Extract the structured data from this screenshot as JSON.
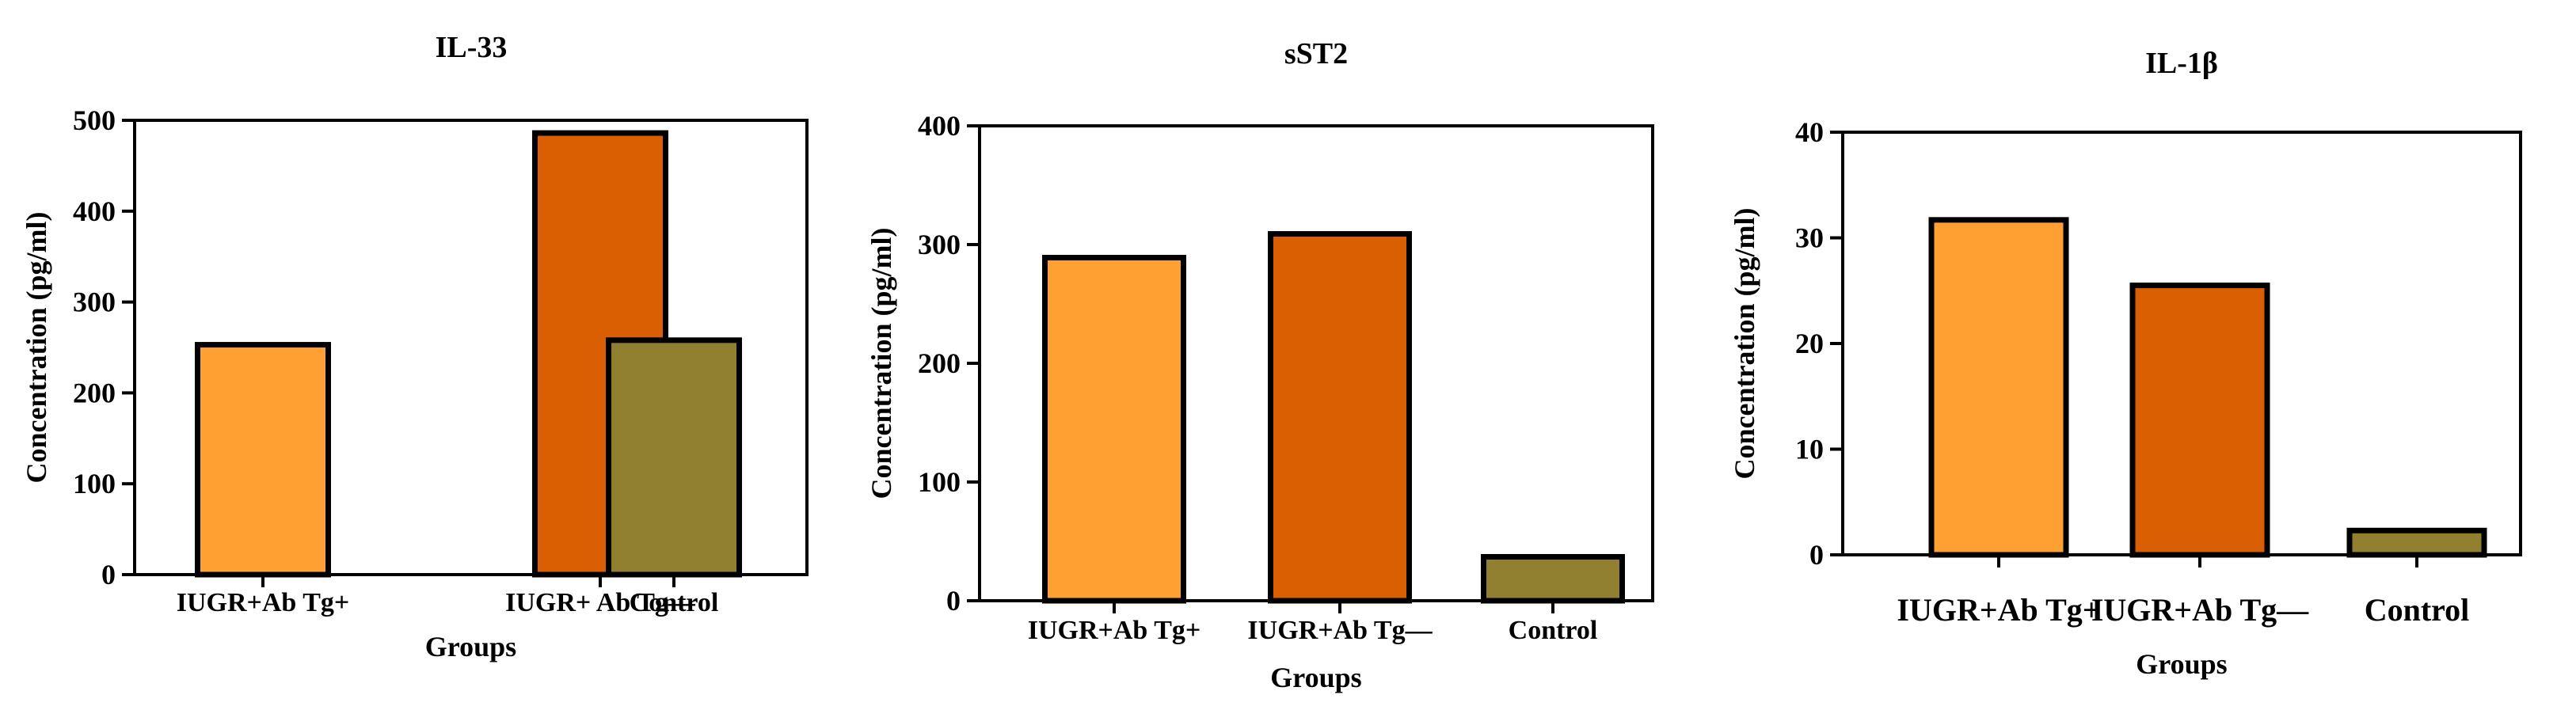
{
  "chart_data": [
    {
      "type": "bar",
      "title": "IL-33",
      "xlabel": "Groups",
      "ylabel": "Concentration (pg/ml)",
      "ylim": [
        0,
        500
      ],
      "yticks": [
        0,
        100,
        200,
        300,
        400,
        500
      ],
      "categories": [
        "IUGR+Ab Tg+",
        "IUGR+ Ab Tg—",
        "Control"
      ],
      "values": [
        253,
        486,
        258
      ],
      "colors": [
        "#FFA033",
        "#D95F02",
        "#917F30"
      ]
    },
    {
      "type": "bar",
      "title": "sST2",
      "xlabel": "Groups",
      "ylabel": "Concentration (pg/ml)",
      "ylim": [
        0,
        400
      ],
      "yticks": [
        0,
        100,
        200,
        300,
        400
      ],
      "categories": [
        "IUGR+Ab Tg+",
        "IUGR+Ab Tg—",
        "Control"
      ],
      "values": [
        289,
        309,
        37
      ],
      "colors": [
        "#FFA033",
        "#D95F02",
        "#917F30"
      ]
    },
    {
      "type": "bar",
      "title": "IL-1β",
      "xlabel": "Groups",
      "ylabel": "Concentration (pg/ml)",
      "ylim": [
        0,
        40
      ],
      "yticks": [
        0,
        10,
        20,
        30,
        40
      ],
      "categories": [
        "IUGR+Ab Tg+",
        "IUGR+Ab Tg—",
        "Control"
      ],
      "values": [
        31.7,
        25.5,
        2.3
      ],
      "colors": [
        "#FFA033",
        "#D95F02",
        "#917F30"
      ]
    }
  ]
}
